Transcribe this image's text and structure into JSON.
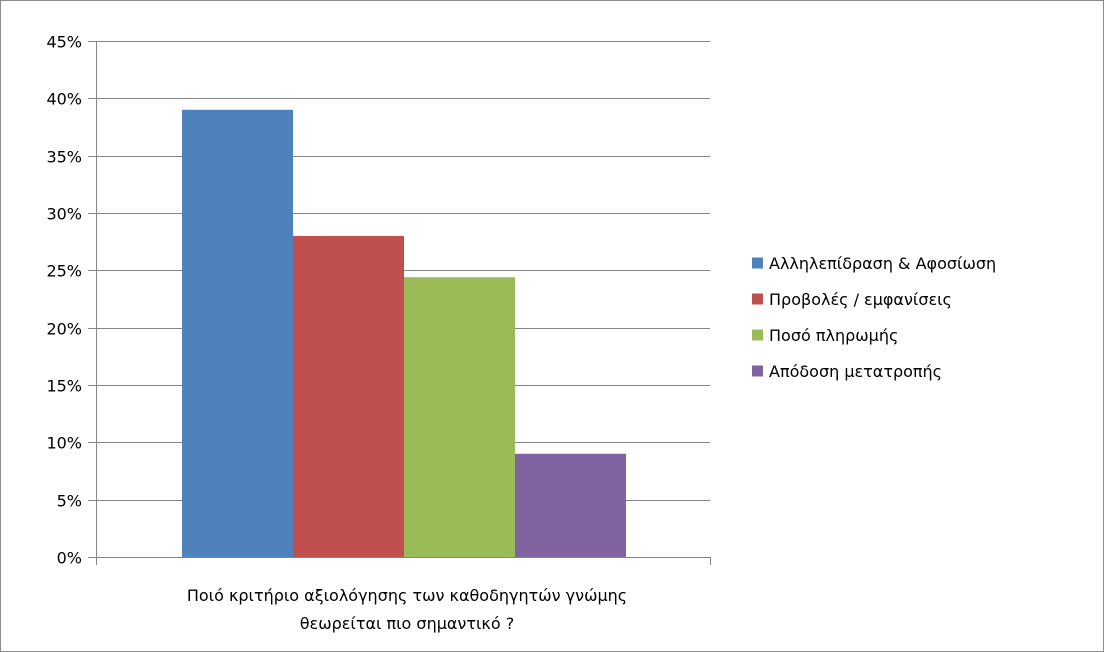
{
  "chart_data": {
    "type": "bar",
    "categories": [
      "Ποιό κριτήριο αξιολόγησης των καθοδηγητών γνώμης θεωρείται πιο σημαντικό ?"
    ],
    "category_label_lines": [
      "Ποιό κριτήριο αξιολόγησης των καθοδηγητών γνώμης",
      "θεωρείται πιο σημαντικό ?"
    ],
    "series": [
      {
        "name": "Αλληλεπίδραση & Αφοσίωση",
        "values": [
          39
        ],
        "color": "#4f81bd"
      },
      {
        "name": "Προβολές / εμφανίσεις",
        "values": [
          28
        ],
        "color": "#c0504d"
      },
      {
        "name": "Ποσό πληρωμής",
        "values": [
          24.4
        ],
        "color": "#9bbb59"
      },
      {
        "name": "Απόδοση μετατροπής",
        "values": [
          9
        ],
        "color": "#8064a2"
      }
    ],
    "ylim": [
      0,
      45
    ],
    "yticks": [
      0,
      5,
      10,
      15,
      20,
      25,
      30,
      35,
      40,
      45
    ],
    "ytick_labels": [
      "0%",
      "5%",
      "10%",
      "15%",
      "20%",
      "25%",
      "30%",
      "35%",
      "40%",
      "45%"
    ],
    "y_unit": "%",
    "grid": true,
    "legend_position": "right",
    "title": "",
    "xlabel": "",
    "ylabel": ""
  }
}
